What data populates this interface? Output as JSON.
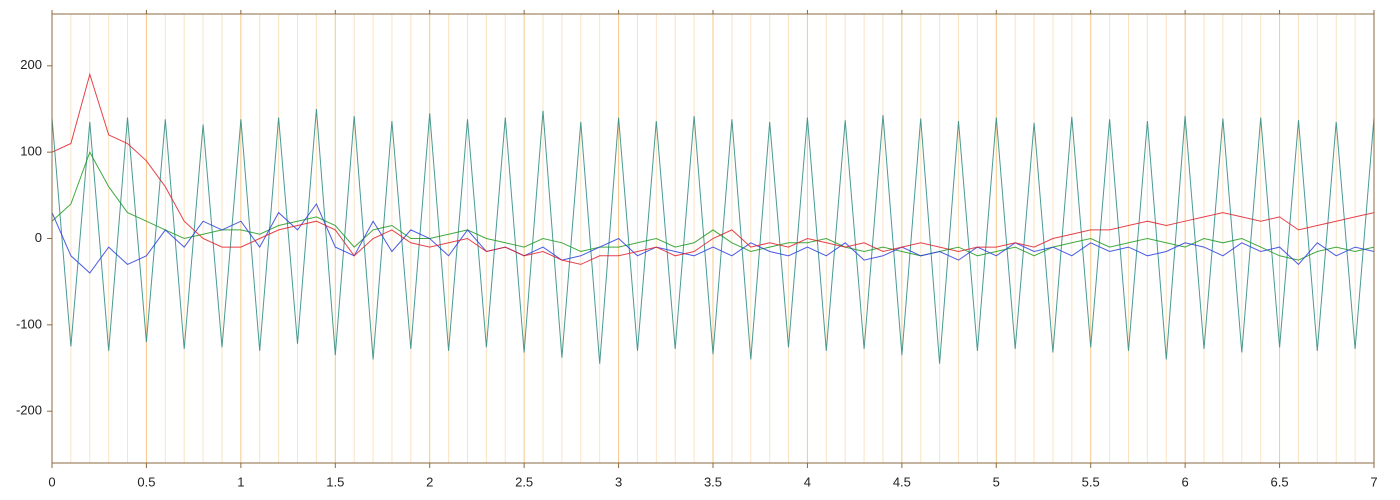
{
  "chart_data": {
    "type": "line",
    "x": [
      0,
      0.1,
      0.2,
      0.3,
      0.4,
      0.5,
      0.6,
      0.7,
      0.8,
      0.9,
      1,
      1.1,
      1.2,
      1.3,
      1.4,
      1.5,
      1.6,
      1.7,
      1.8,
      1.9,
      2,
      2.1,
      2.2,
      2.3,
      2.4,
      2.5,
      2.6,
      2.7,
      2.8,
      2.9,
      3,
      3.1,
      3.2,
      3.3,
      3.4,
      3.5,
      3.6,
      3.7,
      3.8,
      3.9,
      4,
      4.1,
      4.2,
      4.3,
      4.4,
      4.5,
      4.6,
      4.7,
      4.8,
      4.9,
      5,
      5.1,
      5.2,
      5.3,
      5.4,
      5.5,
      5.6,
      5.7,
      5.8,
      5.9,
      6,
      6.1,
      6.2,
      6.3,
      6.4,
      6.5,
      6.6,
      6.7,
      6.8,
      6.9,
      7
    ],
    "series": [
      {
        "color": "#2a8a80",
        "values": [
          140,
          -125,
          135,
          -130,
          140,
          -120,
          138,
          -128,
          132,
          -126,
          138,
          -130,
          140,
          -122,
          150,
          -135,
          142,
          -140,
          136,
          -128,
          145,
          -130,
          138,
          -126,
          140,
          -132,
          148,
          -138,
          135,
          -145,
          140,
          -130,
          136,
          -128,
          142,
          -134,
          138,
          -140,
          135,
          -126,
          140,
          -130,
          137,
          -128,
          143,
          -135,
          139,
          -145,
          136,
          -130,
          140,
          -128,
          134,
          -132,
          141,
          -126,
          138,
          -130,
          136,
          -140,
          142,
          -128,
          139,
          -132,
          140,
          -126,
          137,
          -130,
          135,
          -128,
          140
        ]
      },
      {
        "color": "#1f9a1f",
        "values": [
          20,
          40,
          100,
          60,
          30,
          20,
          10,
          0,
          5,
          10,
          10,
          5,
          15,
          20,
          25,
          15,
          -10,
          10,
          15,
          0,
          0,
          5,
          10,
          0,
          -5,
          -10,
          0,
          -5,
          -15,
          -10,
          -10,
          -5,
          0,
          -10,
          -5,
          10,
          -5,
          -15,
          -10,
          -5,
          -5,
          0,
          -10,
          -15,
          -10,
          -15,
          -20,
          -15,
          -10,
          -20,
          -15,
          -10,
          -20,
          -10,
          -5,
          0,
          -10,
          -5,
          0,
          -5,
          -10,
          0,
          -5,
          0,
          -10,
          -20,
          -25,
          -15,
          -10,
          -15,
          -10
        ]
      },
      {
        "color": "#2a3ee0",
        "values": [
          30,
          -20,
          -40,
          -10,
          -30,
          -20,
          10,
          -10,
          20,
          10,
          20,
          -10,
          30,
          10,
          40,
          -10,
          -20,
          20,
          -15,
          10,
          0,
          -20,
          10,
          -15,
          -10,
          -20,
          -10,
          -25,
          -20,
          -10,
          0,
          -20,
          -10,
          -15,
          -20,
          -10,
          -20,
          -5,
          -15,
          -20,
          -10,
          -20,
          -5,
          -25,
          -20,
          -10,
          -20,
          -15,
          -25,
          -10,
          -20,
          -5,
          -15,
          -10,
          -20,
          -5,
          -15,
          -10,
          -20,
          -15,
          -5,
          -10,
          -20,
          -5,
          -15,
          -10,
          -30,
          -5,
          -20,
          -10,
          -15
        ]
      },
      {
        "color": "#e0202a",
        "values": [
          100,
          110,
          190,
          120,
          110,
          90,
          60,
          20,
          0,
          -10,
          -10,
          0,
          10,
          15,
          20,
          10,
          -20,
          0,
          10,
          -5,
          -10,
          -5,
          0,
          -15,
          -10,
          -20,
          -15,
          -25,
          -30,
          -20,
          -20,
          -15,
          -10,
          -20,
          -15,
          0,
          10,
          -10,
          -5,
          -10,
          0,
          -5,
          -10,
          -5,
          -15,
          -10,
          -5,
          -10,
          -15,
          -10,
          -10,
          -5,
          -10,
          0,
          5,
          10,
          10,
          15,
          20,
          15,
          20,
          25,
          30,
          25,
          20,
          25,
          10,
          15,
          20,
          25,
          30
        ]
      }
    ],
    "xlim": [
      0,
      7
    ],
    "ylim": [
      -260,
      260
    ],
    "xticks": [
      0,
      0.5,
      1,
      1.5,
      2,
      2.5,
      3,
      3.5,
      4,
      4.5,
      5,
      5.5,
      6,
      6.5,
      7
    ],
    "xminorticks": [
      0.1,
      0.2,
      0.3,
      0.4,
      0.6,
      0.7,
      0.8,
      0.9,
      1.1,
      1.2,
      1.3,
      1.4,
      1.6,
      1.7,
      1.8,
      1.9,
      2.1,
      2.2,
      2.3,
      2.4,
      2.6,
      2.7,
      2.8,
      2.9,
      3.1,
      3.2,
      3.3,
      3.4,
      3.6,
      3.7,
      3.8,
      3.9,
      4.1,
      4.2,
      4.3,
      4.4,
      4.6,
      4.7,
      4.8,
      4.9,
      5.1,
      5.2,
      5.3,
      5.4,
      5.6,
      5.7,
      5.8,
      5.9,
      6.1,
      6.2,
      6.3,
      6.4,
      6.6,
      6.7,
      6.8,
      6.9
    ],
    "yticks": [
      200,
      100,
      0,
      -100,
      -200
    ],
    "grid": true
  }
}
